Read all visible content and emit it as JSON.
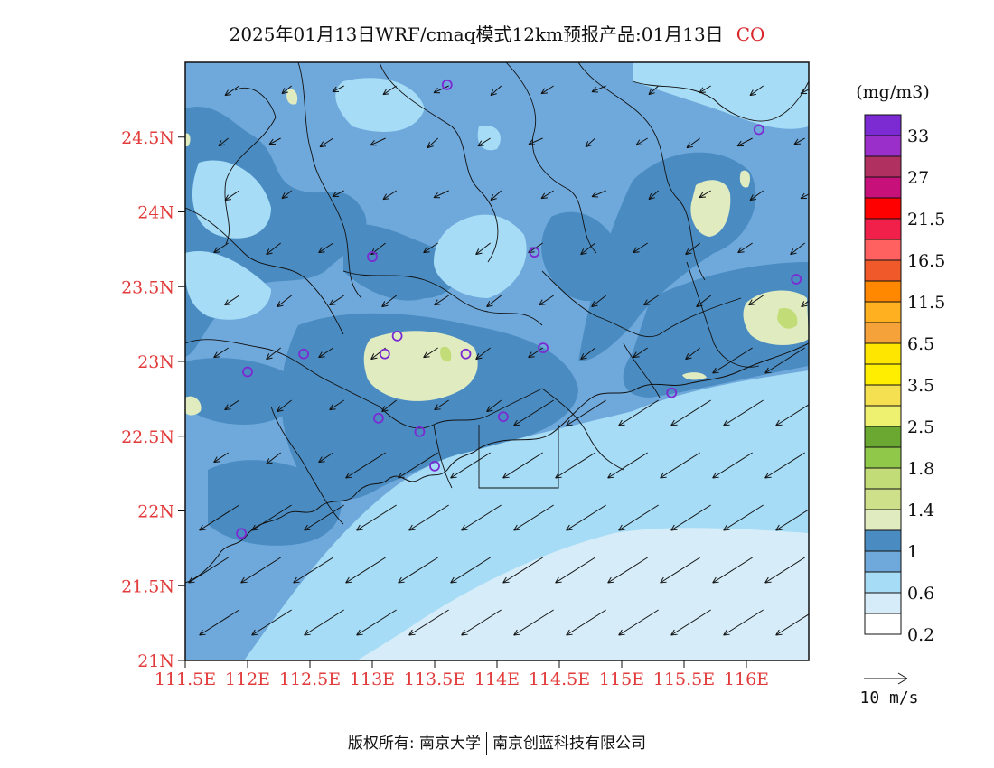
{
  "title": {
    "text": "2025年01月13日WRF/cmaq模式12km预报产品:01月13日",
    "species": "CO"
  },
  "map": {
    "lat_ticks": [
      "24.5N",
      "24N",
      "23.5N",
      "23N",
      "22.5N",
      "22N",
      "21.5N",
      "21N"
    ],
    "lon_ticks": [
      "111.5E",
      "112E",
      "112.5E",
      "113E",
      "113.5E",
      "114E",
      "114.5E",
      "115E",
      "115.5E",
      "116E"
    ],
    "lat_range": [
      21,
      25.0
    ],
    "lon_range": [
      111.5,
      116.5
    ],
    "stations": [
      [
        113.6,
        24.85
      ],
      [
        116.1,
        24.55
      ],
      [
        113.0,
        23.7
      ],
      [
        114.3,
        23.73
      ],
      [
        116.4,
        23.55
      ],
      [
        112.45,
        23.05
      ],
      [
        112.0,
        22.93
      ],
      [
        113.1,
        23.05
      ],
      [
        113.2,
        23.17
      ],
      [
        113.75,
        23.05
      ],
      [
        114.37,
        23.09
      ],
      [
        113.05,
        22.62
      ],
      [
        113.38,
        22.53
      ],
      [
        114.05,
        22.63
      ],
      [
        115.4,
        22.79
      ],
      [
        113.5,
        22.3
      ],
      [
        111.95,
        21.85
      ]
    ]
  },
  "legend": {
    "unit": "(mg/m3)",
    "labels": [
      "33",
      "27",
      "21.5",
      "16.5",
      "11.5",
      "6.5",
      "3.5",
      "2.5",
      "1.8",
      "1.4",
      "1",
      "0.6",
      "0.2"
    ],
    "colors": [
      "#7b2bd1",
      "#9b2fc9",
      "#b03060",
      "#c8107a",
      "#ff0000",
      "#f0204a",
      "#ff6060",
      "#f05a2a",
      "#ff8800",
      "#ffb020",
      "#f6a23a",
      "#ffe600",
      "#ffee00",
      "#f4e050",
      "#eef070",
      "#6aa832",
      "#90c84a",
      "#c2dc78",
      "#cfe08a",
      "#e0ecc0",
      "#4a8cc2",
      "#6fa9dc",
      "#a6dcf6",
      "#d6edf9",
      "#ffffff"
    ],
    "wind_ref": "10 m/s"
  },
  "footer": {
    "left": "版权所有: 南京大学",
    "right": "南京创蓝科技有限公司"
  }
}
